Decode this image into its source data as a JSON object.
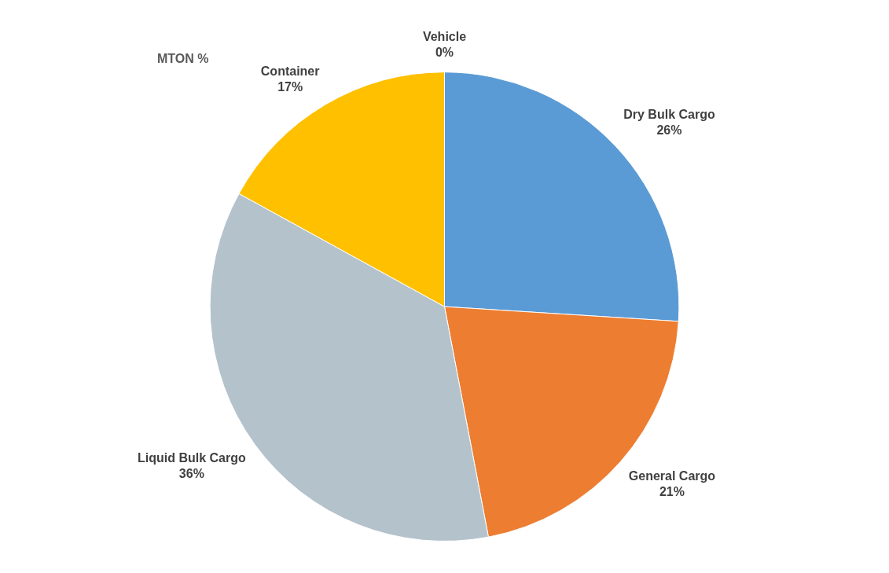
{
  "chart_data": {
    "type": "pie",
    "title": "MTON %",
    "categories": [
      "Dry Bulk Cargo",
      "General Cargo",
      "Liquid Bulk Cargo",
      "Container",
      "Vehicle"
    ],
    "values": [
      26,
      21,
      36,
      17,
      0
    ],
    "value_labels": [
      "26%",
      "21%",
      "36%",
      "17%",
      "0%"
    ],
    "colors": [
      "#5b9bd5",
      "#ed7d31",
      "#b4c2cc",
      "#ffc000",
      "#70ad47"
    ],
    "data_labels": true
  }
}
